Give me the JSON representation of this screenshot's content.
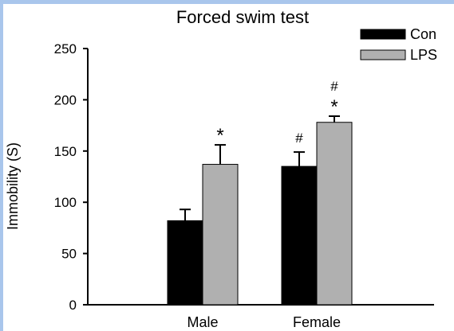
{
  "colors": {
    "background_border": "#a9c6ec",
    "panel": "#ffffff",
    "con": "#000000",
    "lps": "#b0b0b0",
    "axis": "#000000"
  },
  "chart_data": {
    "type": "bar",
    "title": "Forced swim test",
    "xlabel": "",
    "ylabel": "Immobility (S)",
    "categories": [
      "Male",
      "Female"
    ],
    "ylim": [
      0,
      250
    ],
    "yticks": [
      0,
      50,
      100,
      150,
      200,
      250
    ],
    "grid": false,
    "legend_position": "top-right",
    "series": [
      {
        "name": "Con",
        "values": [
          82,
          135
        ],
        "errors": [
          11,
          14
        ],
        "annotations": [
          "",
          "#"
        ]
      },
      {
        "name": "LPS",
        "values": [
          137,
          178
        ],
        "errors": [
          19,
          6
        ],
        "annotations": [
          "*",
          "#\n*"
        ]
      }
    ]
  }
}
